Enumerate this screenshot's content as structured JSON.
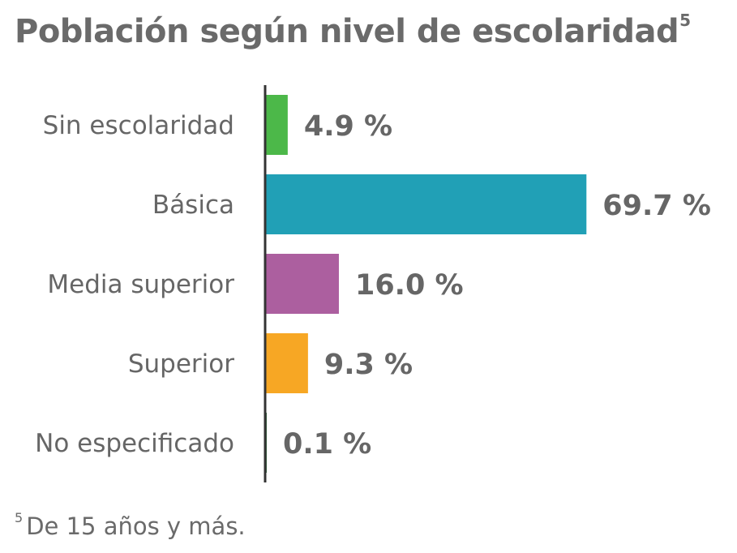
{
  "chart_data": {
    "type": "bar",
    "orientation": "horizontal",
    "title": "Población según nivel de escolaridad",
    "title_footnote_marker": "5",
    "categories": [
      "Sin escolaridad",
      "Básica",
      "Media superior",
      "Superior",
      "No especificado"
    ],
    "values": [
      4.9,
      69.7,
      16.0,
      9.3,
      0.1
    ],
    "value_labels": [
      "4.9 %",
      "69.7 %",
      "16.0 %",
      "9.3 %",
      "0.1 %"
    ],
    "colors": [
      "#4cb849",
      "#21a0b6",
      "#ac5f9f",
      "#f7a724",
      "#2e6b3e"
    ],
    "unit": "%",
    "xlim": [
      0,
      70
    ],
    "grid": false,
    "legend": "none"
  },
  "footnote": {
    "marker": "5",
    "text": "De 15 años y más."
  }
}
